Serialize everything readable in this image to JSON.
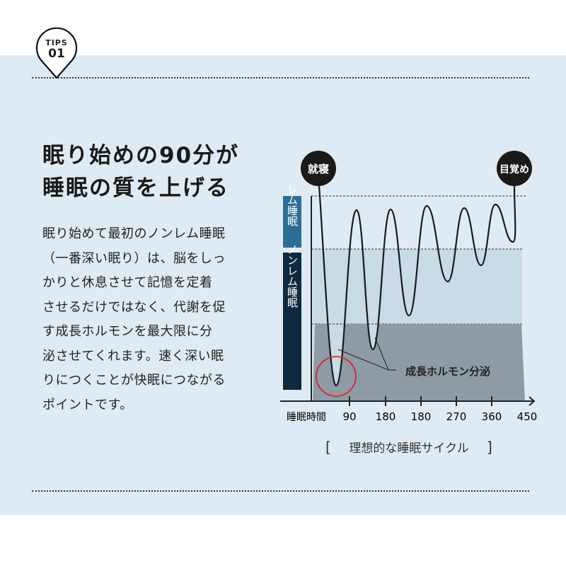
{
  "badge": {
    "label": "TIPS",
    "number": "01"
  },
  "heading": [
    "眠り始めの90分が",
    "睡眠の質を上げる"
  ],
  "body_lines": [
    "眠り始めて最初のノンレム睡眠",
    "（一番深い眠り）は、脳をしっ",
    "かりと休息させて記憶を定着",
    "させるだけではなく、代謝を促",
    "す成長ホルモンを最大限に分",
    "泌させてくれます。速く深い眠",
    "りにつくことが快眠につながる",
    "ポイントです。"
  ],
  "chart_data": {
    "type": "line",
    "title": "理想的な睡眠サイクル",
    "xlabel": "睡眠時間",
    "x_ticks": [
      "90",
      "180",
      "180",
      "270",
      "360",
      "450"
    ],
    "y_bands": [
      "レム睡眠",
      "ノンレム睡眠"
    ],
    "start_label": "就寝",
    "end_label": "目覚め",
    "annotation": "成長ホルモン分泌",
    "colors": {
      "rem": "#2d6e94",
      "nonrem": "#0e2a40",
      "highlight": "#d42a2a",
      "fill": "#c9dbe7"
    }
  }
}
